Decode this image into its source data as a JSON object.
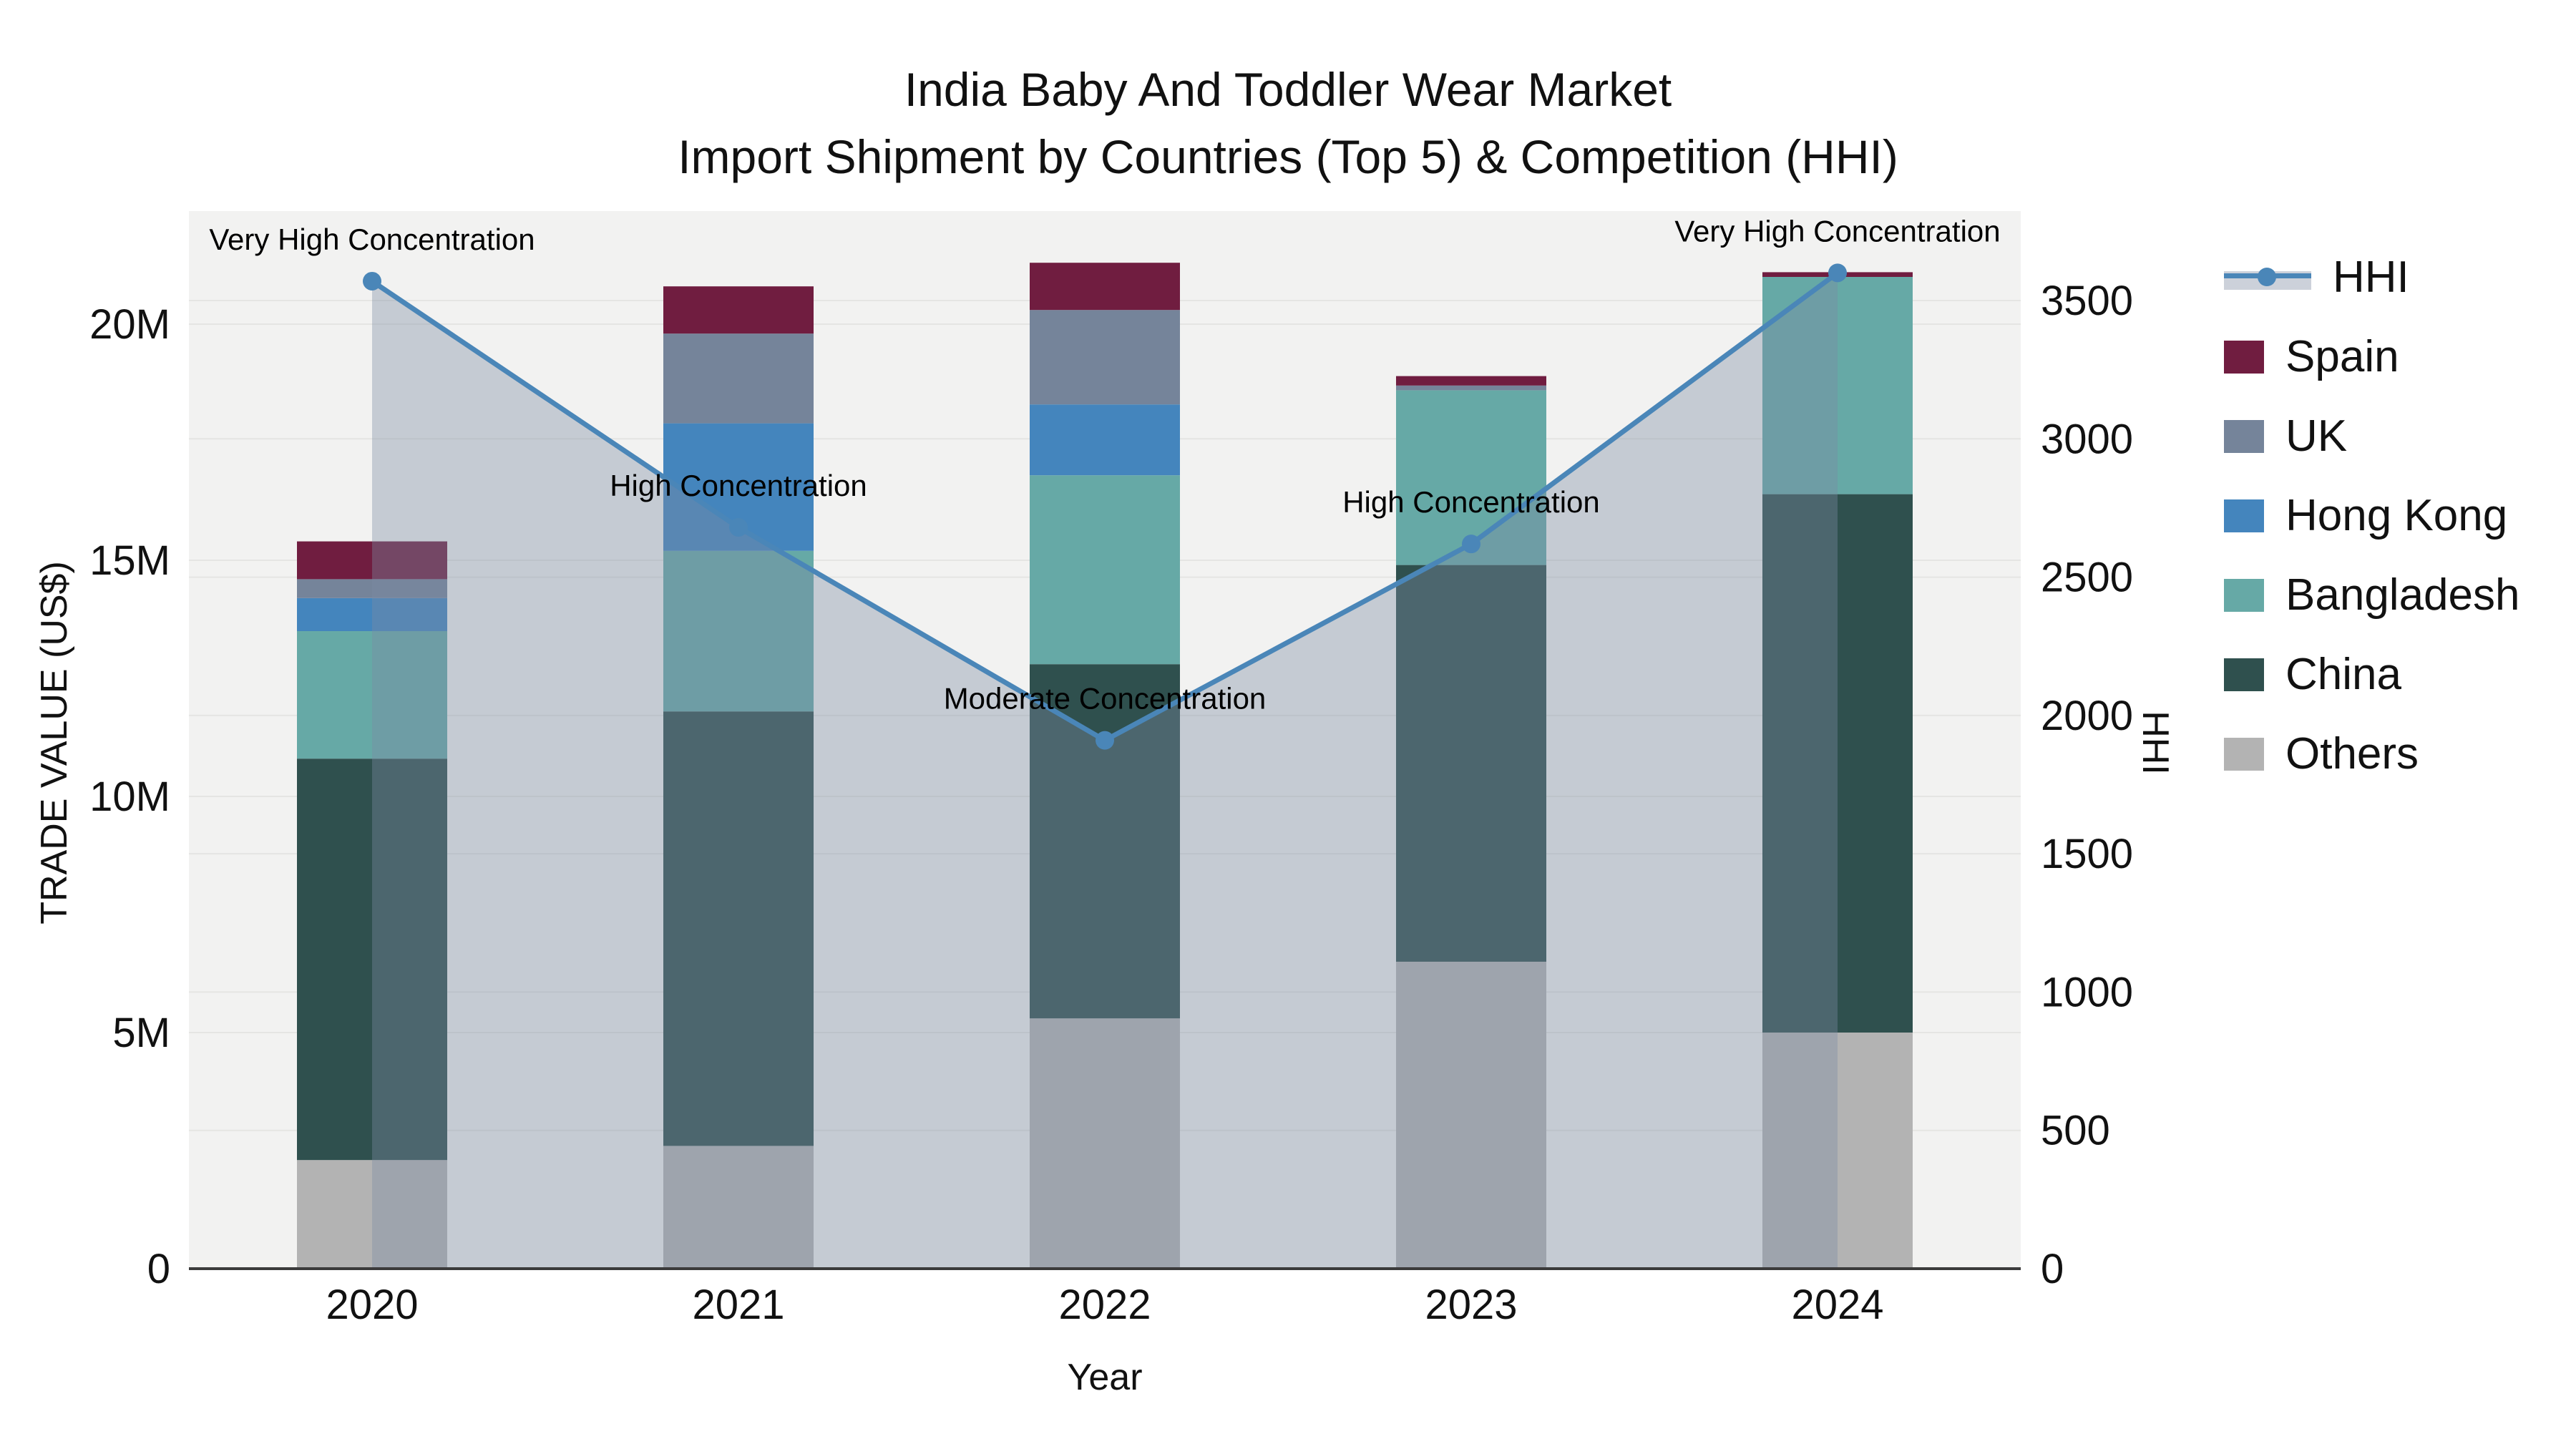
{
  "title": {
    "line1": "India Baby And Toddler Wear Market",
    "line2": "Import Shipment by Countries (Top 5) & Competition (HHI)"
  },
  "axes": {
    "x": {
      "title": "Year",
      "tick_labels": [
        "2020",
        "2021",
        "2022",
        "2023",
        "2024"
      ]
    },
    "y_left": {
      "title": "TRADE VALUE (US$)",
      "tick_labels": [
        "0",
        "5M",
        "10M",
        "15M",
        "20M"
      ],
      "tick_values_millions": [
        0,
        5,
        10,
        15,
        20
      ]
    },
    "y_right": {
      "title": "HHI",
      "tick_labels": [
        "0",
        "500",
        "1000",
        "1500",
        "2000",
        "2500",
        "3000",
        "3500"
      ],
      "tick_values": [
        0,
        500,
        1000,
        1500,
        2000,
        2500,
        3000,
        3500
      ],
      "max": 3500
    }
  },
  "legend": {
    "items": [
      {
        "label": "HHI",
        "type": "line"
      },
      {
        "label": "Spain",
        "type": "box",
        "color": "#701d40"
      },
      {
        "label": "UK",
        "type": "box",
        "color": "#75849a"
      },
      {
        "label": "Hong Kong",
        "type": "box",
        "color": "#4485bd"
      },
      {
        "label": "Bangladesh",
        "type": "box",
        "color": "#66a9a6"
      },
      {
        "label": "China",
        "type": "box",
        "color": "#2f504e"
      },
      {
        "label": "Others",
        "type": "box",
        "color": "#b3b3b3"
      }
    ]
  },
  "chart_data": {
    "type": "bar",
    "subtype": "stacked-bars-with-line-overlay",
    "title": "India Baby And Toddler Wear Market — Import Shipment by Countries (Top 5) & Competition (HHI)",
    "xlabel": "Year",
    "ylabel_left": "TRADE VALUE (US$)",
    "ylabel_right": "HHI",
    "ylim_left_millions": [
      0,
      22.4
    ],
    "ylim_right": [
      0,
      3620
    ],
    "grid": "on",
    "legend_position": "right",
    "categories": [
      "2020",
      "2021",
      "2022",
      "2023",
      "2024"
    ],
    "bar_unit": "million US$",
    "series": [
      {
        "name": "Others",
        "color": "#b3b3b3",
        "values": [
          2.3,
          2.6,
          5.3,
          6.5,
          5.0
        ]
      },
      {
        "name": "China",
        "color": "#2f504e",
        "values": [
          8.5,
          9.2,
          7.5,
          8.4,
          11.4
        ]
      },
      {
        "name": "Bangladesh",
        "color": "#66a9a6",
        "values": [
          2.7,
          3.4,
          4.0,
          3.7,
          4.6
        ]
      },
      {
        "name": "Hong Kong",
        "color": "#4485bd",
        "values": [
          0.7,
          2.7,
          1.5,
          0.0,
          0.0
        ]
      },
      {
        "name": "UK",
        "color": "#75849a",
        "values": [
          0.4,
          1.9,
          2.0,
          0.1,
          0.0
        ]
      },
      {
        "name": "Spain",
        "color": "#701d40",
        "values": [
          0.8,
          1.0,
          1.0,
          0.2,
          0.1
        ]
      }
    ],
    "bar_totals_millions": [
      15.4,
      20.8,
      21.3,
      18.9,
      21.1
    ],
    "line_series": {
      "name": "HHI",
      "color": "#4a86b8",
      "area_fill_color": "rgba(124,139,162,0.38)",
      "values": [
        3570,
        2680,
        1910,
        2620,
        3600
      ]
    },
    "annotations": [
      {
        "year": "2020",
        "text": "Very High Concentration"
      },
      {
        "year": "2021",
        "text": "High Concentration"
      },
      {
        "year": "2022",
        "text": "Moderate Concentration"
      },
      {
        "year": "2023",
        "text": "High Concentration"
      },
      {
        "year": "2024",
        "text": "Very High Concentration"
      }
    ],
    "style": {
      "plot_bg": "#f2f2f1",
      "gridline_color": "#e5e5e3",
      "axis_line_color": "#3b3b3b"
    }
  }
}
